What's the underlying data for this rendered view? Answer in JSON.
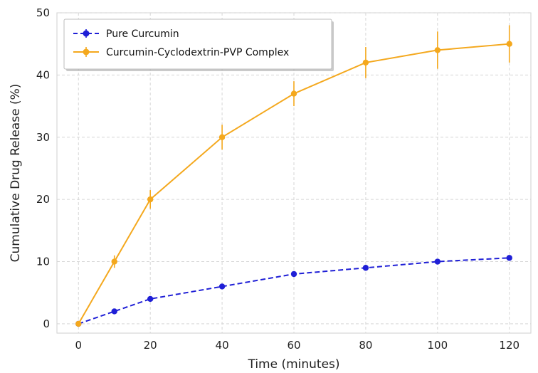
{
  "chart_data": {
    "type": "line",
    "xlabel": "Time (minutes)",
    "ylabel": "Cumulative Drug Release (%)",
    "xlim": [
      -6,
      126
    ],
    "ylim": [
      -1.5,
      50
    ],
    "xticks": [
      0,
      20,
      40,
      60,
      80,
      100,
      120
    ],
    "yticks": [
      0,
      10,
      20,
      30,
      40,
      50
    ],
    "grid": true,
    "grid_style": "dashed",
    "legend_position": "top-left",
    "series": [
      {
        "name": "Pure Curcumin",
        "color": "#1f1fd6",
        "line_style": "dashed",
        "marker": "circle",
        "x": [
          0,
          10,
          20,
          40,
          60,
          80,
          100,
          120
        ],
        "y": [
          0,
          2,
          4,
          6,
          8,
          9,
          10,
          10.6
        ],
        "error": [
          0.2,
          0.2,
          0.3,
          0.3,
          0.3,
          0.3,
          0.3,
          0.3
        ]
      },
      {
        "name": "Curcumin-Cyclodextrin-PVP Complex",
        "color": "#f4a81d",
        "line_style": "solid",
        "marker": "circle",
        "x": [
          0,
          10,
          20,
          40,
          60,
          80,
          100,
          120
        ],
        "y": [
          0,
          10,
          20,
          30,
          37,
          42,
          44,
          45
        ],
        "error": [
          0.4,
          1.0,
          1.5,
          2.0,
          2.0,
          2.5,
          3.0,
          3.0
        ]
      }
    ]
  }
}
